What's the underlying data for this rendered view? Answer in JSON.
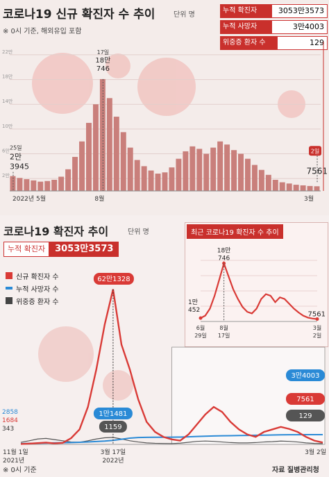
{
  "top": {
    "title": "코로나19 신규 확진자 수 추이",
    "unit": "단위 명",
    "note": "※ 0시 기준, 해외유입 포함",
    "stats": [
      {
        "label": "누적 확진자",
        "value": "3053만3573"
      },
      {
        "label": "누적 사망자",
        "value": "3만4003"
      },
      {
        "label": "위중증 환자 수",
        "value": "129"
      }
    ]
  },
  "bottom": {
    "title": "코로나19 확진자 추이",
    "unit": "단위 명",
    "cumulative_label": "누적 확진자",
    "cumulative_value": "3053만3573",
    "legend": [
      {
        "label": "신규 확진자 수",
        "color": "#d93a36"
      },
      {
        "label": "누적 사망자 수",
        "color": "#2a8ad6"
      },
      {
        "label": "위중증 환자 수",
        "color": "#444444"
      }
    ],
    "inset_title": "최근 코로나19 확진자 수 추이",
    "source": "자료  질병관리청",
    "footnote": "※ 0시 기준"
  },
  "chart_data": [
    {
      "type": "bar",
      "title": "코로나19 신규 확진자 수 추이",
      "yticks": [
        "22만",
        "18만",
        "14만",
        "10만",
        "6만",
        "2만"
      ],
      "ylim": [
        0,
        230000
      ],
      "xtick_labels": [
        "2022년 5월",
        "8월",
        "3월"
      ],
      "annotations": [
        {
          "date": "5월 25일",
          "label_date": "25일",
          "value_lines": [
            "2만",
            "3945"
          ],
          "value": 23945
        },
        {
          "date": "8월 17일",
          "label_date": "17일",
          "value_lines": [
            "18만",
            "746"
          ],
          "value": 180746
        },
        {
          "date": "3월 2일",
          "label_date": "2일",
          "value_lines": [
            "7561"
          ],
          "value": 7561
        }
      ],
      "series": [
        {
          "values": [
            24000,
            21000,
            19000,
            17000,
            15000,
            16000,
            18000,
            23000,
            35000,
            55000,
            80000,
            110000,
            140000,
            180746,
            150000,
            120000,
            95000,
            70000,
            50000,
            40000,
            33000,
            28000,
            30000,
            38000,
            52000,
            64000,
            72000,
            68000,
            60000,
            70000,
            80000,
            75000,
            66000,
            60000,
            52000,
            42000,
            34000,
            26000,
            18000,
            14000,
            12000,
            10000,
            9000,
            8000,
            7561
          ]
        }
      ]
    },
    {
      "type": "line",
      "title": "코로나19 확진자 추이",
      "xtick_labels": [
        "11월 1일",
        "3월 17일",
        "3월 2일"
      ],
      "year_labels": [
        "2021년",
        "2022년"
      ],
      "start_values": [
        {
          "series": "누적 사망자 수",
          "label": "2858"
        },
        {
          "series": "신규 확진자 수",
          "label": "1684"
        },
        {
          "series": "위중증 환자 수",
          "label": "343"
        }
      ],
      "peak_callouts": [
        {
          "series": "신규 확진자 수",
          "label": "62만1328",
          "value": 621328
        },
        {
          "series": "누적 사망자 수",
          "label": "1만1481",
          "value": 11481
        },
        {
          "series": "위중증 환자 수",
          "label": "1159",
          "value": 1159
        }
      ],
      "end_values": [
        {
          "series": "누적 사망자 수",
          "label": "3만4003",
          "value": 34003
        },
        {
          "series": "신규 확진자 수",
          "label": "7561",
          "value": 7561
        },
        {
          "series": "위중증 환자 수",
          "label": "129",
          "value": 129
        }
      ],
      "series": [
        {
          "name": "신규 확진자 수",
          "values": [
            1684,
            3000,
            5000,
            7000,
            4000,
            6000,
            25000,
            60000,
            150000,
            300000,
            480000,
            621328,
            400000,
            300000,
            180000,
            90000,
            50000,
            30000,
            20000,
            15000,
            40000,
            80000,
            120000,
            150000,
            130000,
            90000,
            60000,
            40000,
            30000,
            50000,
            60000,
            70000,
            62000,
            50000,
            30000,
            15000,
            7561
          ]
        },
        {
          "name": "누적 사망자 수",
          "values": [
            2858,
            3200,
            3800,
            4500,
            5200,
            5800,
            6300,
            7200,
            8500,
            10000,
            11481,
            14000,
            18000,
            22000,
            24000,
            24500,
            24800,
            25000,
            25200,
            25600,
            26500,
            27600,
            28500,
            29300,
            30000,
            30500,
            31000,
            31400,
            31800,
            32300,
            32800,
            33300,
            33600,
            33800,
            33950,
            34000,
            34003
          ]
        },
        {
          "name": "위중증 환자 수",
          "values": [
            343,
            600,
            900,
            1000,
            800,
            600,
            400,
            350,
            600,
            900,
            1100,
            1159,
            900,
            600,
            400,
            250,
            180,
            150,
            140,
            200,
            350,
            500,
            560,
            500,
            400,
            300,
            250,
            250,
            300,
            400,
            450,
            550,
            500,
            400,
            250,
            160,
            129
          ]
        }
      ]
    },
    {
      "type": "line",
      "title": "최근 코로나19 확진자 수 추이",
      "yticks": [
        "",
        "",
        "",
        "",
        ""
      ],
      "xtick_labels": [
        "6월 29일",
        "8월 17일",
        "3월 2일"
      ],
      "annotations": [
        {
          "date": "6월 29일",
          "value_lines": [
            "1만",
            "452"
          ],
          "value": 10452
        },
        {
          "date": "8월 17일",
          "value_lines": [
            "18만",
            "746"
          ],
          "value": 180746
        },
        {
          "date": "3월 2일",
          "value_lines": [
            "7561"
          ],
          "value": 7561
        }
      ],
      "series": [
        {
          "values": [
            10452,
            18000,
            40000,
            80000,
            130000,
            180746,
            140000,
            100000,
            70000,
            45000,
            30000,
            25000,
            40000,
            70000,
            85000,
            80000,
            60000,
            75000,
            70000,
            55000,
            40000,
            28000,
            18000,
            12000,
            9000,
            7561
          ]
        }
      ]
    }
  ]
}
